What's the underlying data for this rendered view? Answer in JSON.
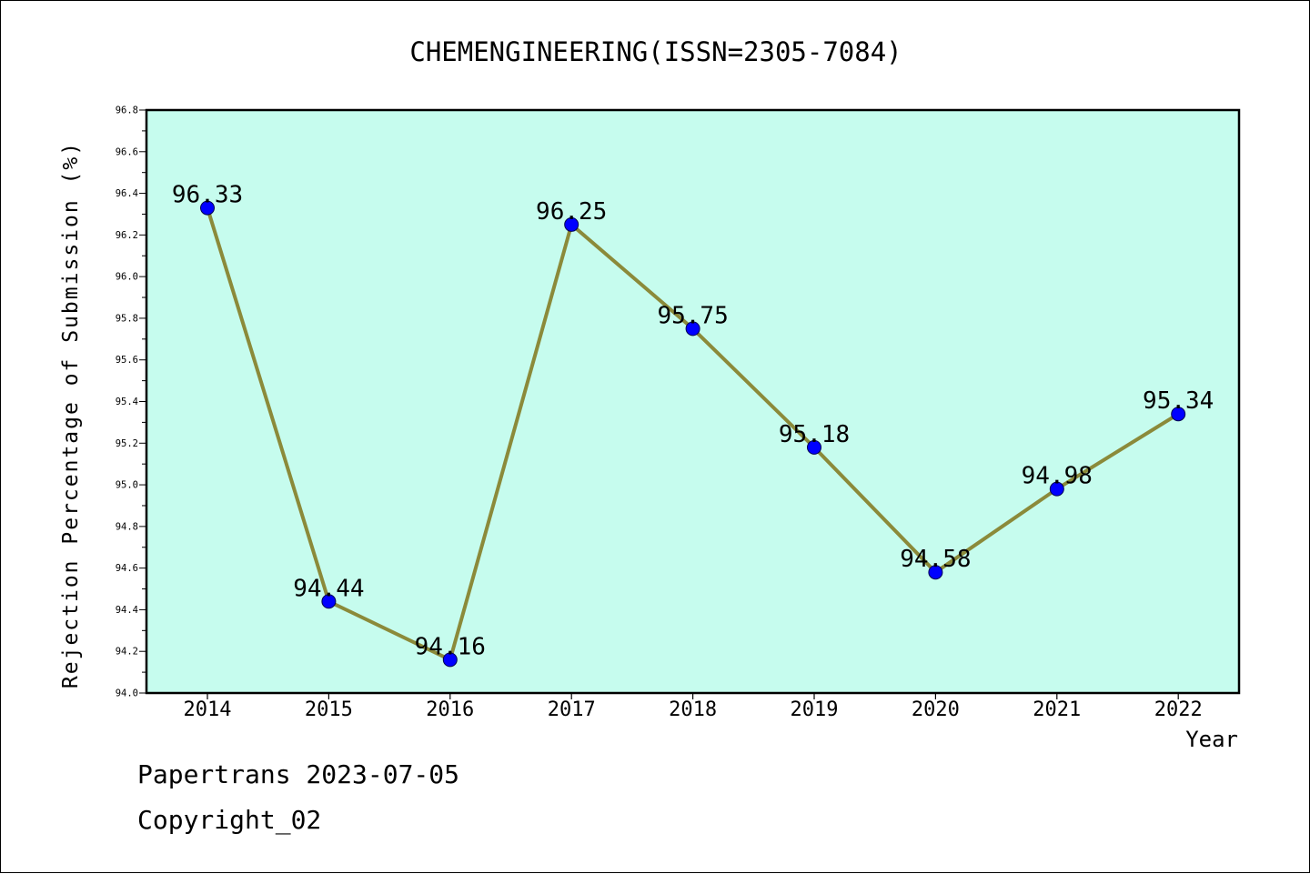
{
  "chart_data": {
    "type": "line",
    "title": "CHEMENGINEERING(ISSN=2305-7084)",
    "xlabel": "Year",
    "ylabel": "Rejection Percentage of Submission (%)",
    "categories": [
      "2014",
      "2015",
      "2016",
      "2017",
      "2018",
      "2019",
      "2020",
      "2021",
      "2022"
    ],
    "values": [
      96.33,
      94.44,
      94.16,
      96.25,
      95.75,
      95.18,
      94.58,
      94.98,
      95.34
    ],
    "data_labels": [
      "96.33",
      "94.44",
      "94.16",
      "96.25",
      "95.75",
      "95.18",
      "94.58",
      "94.98",
      "95.34"
    ],
    "ylim": [
      94.0,
      96.8
    ],
    "yticks": [
      "94.0",
      "94.2",
      "94.4",
      "94.6",
      "94.8",
      "95.0",
      "95.2",
      "95.4",
      "95.6",
      "95.8",
      "96.0",
      "96.2",
      "96.4",
      "96.6",
      "96.8"
    ],
    "grid": false,
    "legend": "none",
    "colors": {
      "plot_background": "#c6fcee",
      "line": "#8b8a3a",
      "marker": "#0000ff"
    }
  },
  "footer": {
    "line1": "Papertrans 2023-07-05",
    "line2": "Copyright_02"
  }
}
